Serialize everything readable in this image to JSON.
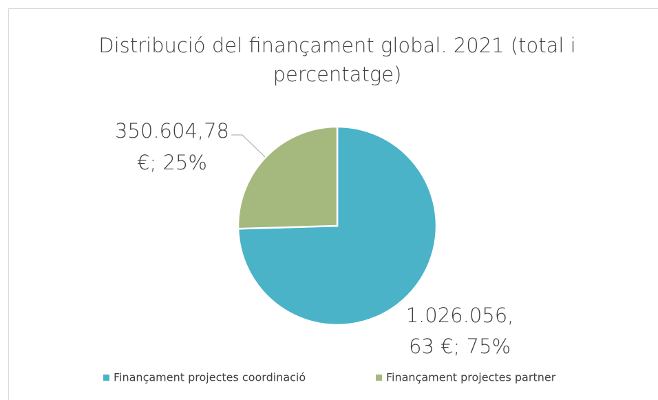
{
  "chart_data": {
    "type": "pie",
    "title": [
      "Distribució del finançament global. 2021 (total i",
      "percentatge)"
    ],
    "categories": [
      "Finançament projectes coordinació",
      "Finançament projectes partner"
    ],
    "values": [
      1026056.63,
      350604.78
    ],
    "value_labels": [
      [
        "1.026.056,",
        "63 €; 75%"
      ],
      [
        "350.604,78",
        "€; 25%"
      ]
    ],
    "colors": [
      "#4bb3c8",
      "#a5b97f"
    ],
    "legend": "bottom"
  }
}
